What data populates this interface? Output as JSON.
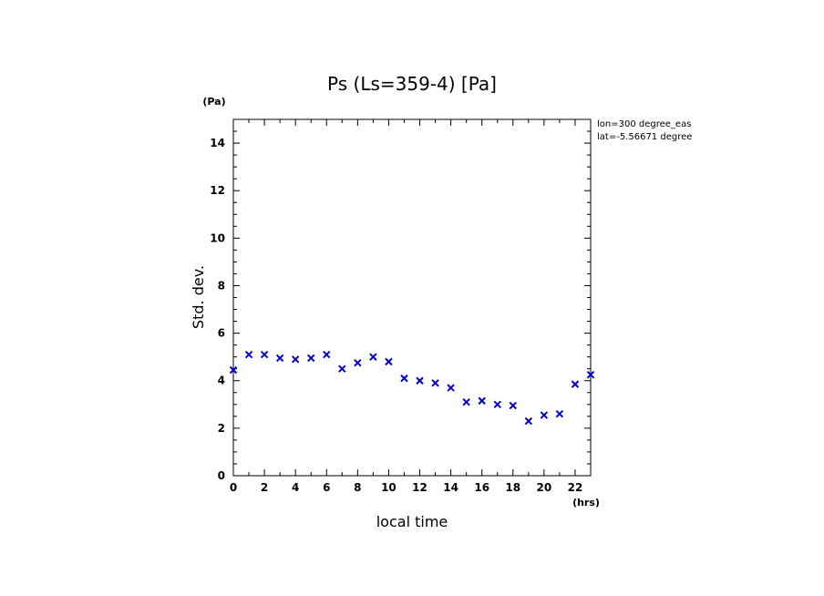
{
  "chart_data": {
    "type": "scatter",
    "title": "Ps (Ls=359-4) [Pa]",
    "xlabel": "local time",
    "ylabel": "Std. dev.",
    "x_unit": "(hrs)",
    "y_unit": "(Pa)",
    "xlim": [
      0,
      23
    ],
    "ylim": [
      0,
      15
    ],
    "x_ticks": [
      0,
      2,
      4,
      6,
      8,
      10,
      12,
      14,
      16,
      18,
      20,
      22
    ],
    "y_ticks": [
      0,
      2,
      4,
      6,
      8,
      10,
      12,
      14
    ],
    "marker": "x",
    "marker_color": "#0000cc",
    "annotations": [
      "lon=300 degree_eas",
      "lat=-5.56671 degree"
    ],
    "points": [
      {
        "x": 0,
        "y": 4.45
      },
      {
        "x": 1,
        "y": 5.1
      },
      {
        "x": 2,
        "y": 5.1
      },
      {
        "x": 3,
        "y": 4.95
      },
      {
        "x": 4,
        "y": 4.9
      },
      {
        "x": 5,
        "y": 4.95
      },
      {
        "x": 6,
        "y": 5.1
      },
      {
        "x": 7,
        "y": 4.5
      },
      {
        "x": 8,
        "y": 4.75
      },
      {
        "x": 9,
        "y": 5.0
      },
      {
        "x": 10,
        "y": 4.8
      },
      {
        "x": 11,
        "y": 4.1
      },
      {
        "x": 12,
        "y": 4.0
      },
      {
        "x": 13,
        "y": 3.9
      },
      {
        "x": 14,
        "y": 3.7
      },
      {
        "x": 15,
        "y": 3.1
      },
      {
        "x": 16,
        "y": 3.15
      },
      {
        "x": 17,
        "y": 3.0
      },
      {
        "x": 18,
        "y": 2.95
      },
      {
        "x": 19,
        "y": 2.3
      },
      {
        "x": 20,
        "y": 2.55
      },
      {
        "x": 21,
        "y": 2.6
      },
      {
        "x": 22,
        "y": 3.85
      },
      {
        "x": 23,
        "y": 4.25
      }
    ]
  }
}
